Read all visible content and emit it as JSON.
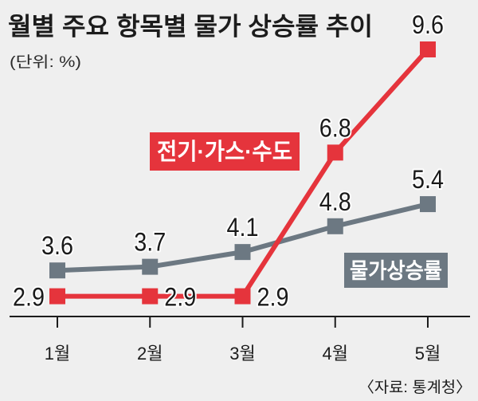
{
  "colors": {
    "background": "#efefef",
    "text": "#1c1c1c",
    "axis": "#1c1c1c",
    "label_halo": "#ffffff"
  },
  "chart_data": {
    "type": "line",
    "title": "월별 주요 항목별 물가 상승률 추이",
    "unit": "(단위: %)",
    "source": "〈자료: 통계청〉",
    "categories": [
      "1월",
      "2월",
      "3월",
      "4월",
      "5월"
    ],
    "series": [
      {
        "name": "전기·가스·수도",
        "color": "#e5343c",
        "values": [
          2.9,
          2.9,
          2.9,
          6.8,
          9.6
        ]
      },
      {
        "name": "물가상승률",
        "color": "#6c7882",
        "values": [
          3.6,
          3.7,
          4.1,
          4.8,
          5.4
        ]
      }
    ],
    "ylim": [
      2.35,
      9.6
    ],
    "grid": false
  }
}
